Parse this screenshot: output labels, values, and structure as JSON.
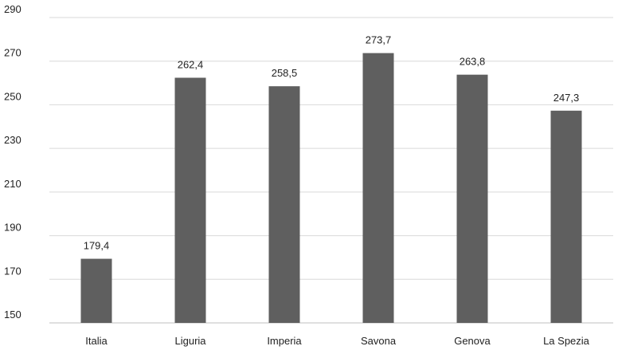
{
  "chart_data": {
    "type": "bar",
    "title": "",
    "xlabel": "",
    "ylabel": "",
    "categories": [
      "Italia",
      "Liguria",
      "Imperia",
      "Savona",
      "Genova",
      "La Spezia"
    ],
    "values": [
      179.4,
      262.4,
      258.5,
      273.7,
      263.8,
      247.3
    ],
    "value_labels": [
      "179,4",
      "262,4",
      "258,5",
      "273,7",
      "263,8",
      "247,3"
    ],
    "ylim": [
      150,
      290
    ],
    "yticks": [
      150,
      170,
      190,
      210,
      230,
      250,
      270,
      290
    ],
    "grid": true,
    "legend": "none",
    "colors": {
      "bar": "#5f5f5f",
      "grid": "#d9d9d9",
      "axis": "#bfbfbf",
      "text": "#222222"
    }
  }
}
